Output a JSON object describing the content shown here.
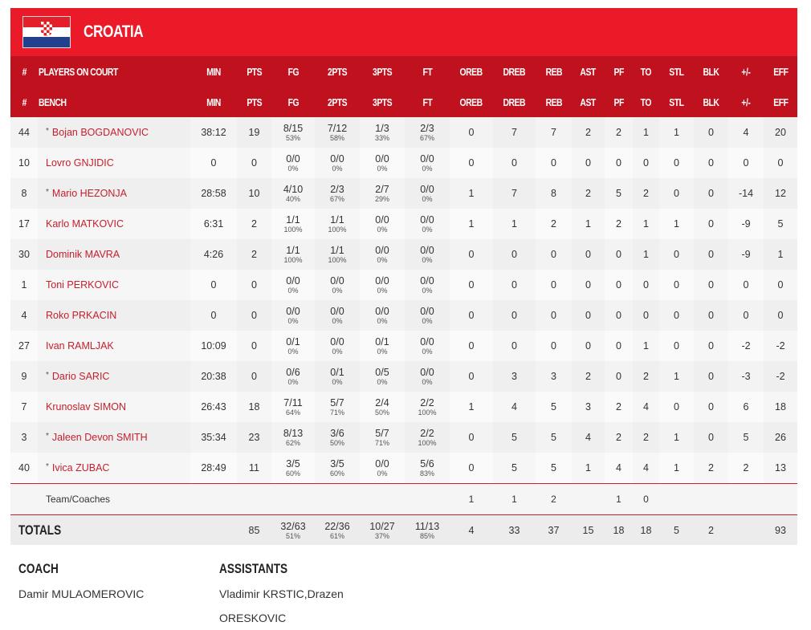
{
  "team": {
    "name": "CROATIA",
    "flag": "croatia-flag",
    "colors": {
      "banner": "#ea1a28",
      "header": "#c0121e"
    }
  },
  "headers_court": [
    "#",
    "PLAYERS ON COURT",
    "MIN",
    "PTS",
    "FG",
    "2PTS",
    "3PTS",
    "FT",
    "OREB",
    "DREB",
    "REB",
    "AST",
    "PF",
    "TO",
    "STL",
    "BLK",
    "+/-",
    "EFF"
  ],
  "headers_bench": [
    "#",
    "BENCH",
    "MIN",
    "PTS",
    "FG",
    "2PTS",
    "3PTS",
    "FT",
    "OREB",
    "DREB",
    "REB",
    "AST",
    "PF",
    "TO",
    "STL",
    "BLK",
    "+/-",
    "EFF"
  ],
  "players": [
    {
      "num": "44",
      "starter": "*",
      "name": "Bojan BOGDANOVIC",
      "min": "38:12",
      "pts": "19",
      "fg": "8/15",
      "fgp": "53%",
      "p2": "7/12",
      "p2p": "58%",
      "p3": "1/3",
      "p3p": "33%",
      "ft": "2/3",
      "ftp": "67%",
      "oreb": "0",
      "dreb": "7",
      "reb": "7",
      "ast": "2",
      "pf": "2",
      "to": "1",
      "stl": "1",
      "blk": "0",
      "pm": "4",
      "eff": "20"
    },
    {
      "num": "10",
      "starter": "",
      "name": "Lovro GNJIDIC",
      "min": "0",
      "pts": "0",
      "fg": "0/0",
      "fgp": "0%",
      "p2": "0/0",
      "p2p": "0%",
      "p3": "0/0",
      "p3p": "0%",
      "ft": "0/0",
      "ftp": "0%",
      "oreb": "0",
      "dreb": "0",
      "reb": "0",
      "ast": "0",
      "pf": "0",
      "to": "0",
      "stl": "0",
      "blk": "0",
      "pm": "0",
      "eff": "0"
    },
    {
      "num": "8",
      "starter": "*",
      "name": "Mario HEZONJA",
      "min": "28:58",
      "pts": "10",
      "fg": "4/10",
      "fgp": "40%",
      "p2": "2/3",
      "p2p": "67%",
      "p3": "2/7",
      "p3p": "29%",
      "ft": "0/0",
      "ftp": "0%",
      "oreb": "1",
      "dreb": "7",
      "reb": "8",
      "ast": "2",
      "pf": "5",
      "to": "2",
      "stl": "0",
      "blk": "0",
      "pm": "-14",
      "eff": "12"
    },
    {
      "num": "17",
      "starter": "",
      "name": "Karlo MATKOVIC",
      "min": "6:31",
      "pts": "2",
      "fg": "1/1",
      "fgp": "100%",
      "p2": "1/1",
      "p2p": "100%",
      "p3": "0/0",
      "p3p": "0%",
      "ft": "0/0",
      "ftp": "0%",
      "oreb": "1",
      "dreb": "1",
      "reb": "2",
      "ast": "1",
      "pf": "2",
      "to": "1",
      "stl": "1",
      "blk": "0",
      "pm": "-9",
      "eff": "5"
    },
    {
      "num": "30",
      "starter": "",
      "name": "Dominik MAVRA",
      "min": "4:26",
      "pts": "2",
      "fg": "1/1",
      "fgp": "100%",
      "p2": "1/1",
      "p2p": "100%",
      "p3": "0/0",
      "p3p": "0%",
      "ft": "0/0",
      "ftp": "0%",
      "oreb": "0",
      "dreb": "0",
      "reb": "0",
      "ast": "0",
      "pf": "0",
      "to": "1",
      "stl": "0",
      "blk": "0",
      "pm": "-9",
      "eff": "1"
    },
    {
      "num": "1",
      "starter": "",
      "name": "Toni PERKOVIC",
      "min": "0",
      "pts": "0",
      "fg": "0/0",
      "fgp": "0%",
      "p2": "0/0",
      "p2p": "0%",
      "p3": "0/0",
      "p3p": "0%",
      "ft": "0/0",
      "ftp": "0%",
      "oreb": "0",
      "dreb": "0",
      "reb": "0",
      "ast": "0",
      "pf": "0",
      "to": "0",
      "stl": "0",
      "blk": "0",
      "pm": "0",
      "eff": "0"
    },
    {
      "num": "4",
      "starter": "",
      "name": "Roko PRKACIN",
      "min": "0",
      "pts": "0",
      "fg": "0/0",
      "fgp": "0%",
      "p2": "0/0",
      "p2p": "0%",
      "p3": "0/0",
      "p3p": "0%",
      "ft": "0/0",
      "ftp": "0%",
      "oreb": "0",
      "dreb": "0",
      "reb": "0",
      "ast": "0",
      "pf": "0",
      "to": "0",
      "stl": "0",
      "blk": "0",
      "pm": "0",
      "eff": "0"
    },
    {
      "num": "27",
      "starter": "",
      "name": "Ivan RAMLJAK",
      "min": "10:09",
      "pts": "0",
      "fg": "0/1",
      "fgp": "0%",
      "p2": "0/0",
      "p2p": "0%",
      "p3": "0/1",
      "p3p": "0%",
      "ft": "0/0",
      "ftp": "0%",
      "oreb": "0",
      "dreb": "0",
      "reb": "0",
      "ast": "0",
      "pf": "0",
      "to": "1",
      "stl": "0",
      "blk": "0",
      "pm": "-2",
      "eff": "-2"
    },
    {
      "num": "9",
      "starter": "*",
      "name": "Dario SARIC",
      "min": "20:38",
      "pts": "0",
      "fg": "0/6",
      "fgp": "0%",
      "p2": "0/1",
      "p2p": "0%",
      "p3": "0/5",
      "p3p": "0%",
      "ft": "0/0",
      "ftp": "0%",
      "oreb": "0",
      "dreb": "3",
      "reb": "3",
      "ast": "2",
      "pf": "0",
      "to": "2",
      "stl": "1",
      "blk": "0",
      "pm": "-3",
      "eff": "-2"
    },
    {
      "num": "7",
      "starter": "",
      "name": "Krunoslav SIMON",
      "min": "26:43",
      "pts": "18",
      "fg": "7/11",
      "fgp": "64%",
      "p2": "5/7",
      "p2p": "71%",
      "p3": "2/4",
      "p3p": "50%",
      "ft": "2/2",
      "ftp": "100%",
      "oreb": "1",
      "dreb": "4",
      "reb": "5",
      "ast": "3",
      "pf": "2",
      "to": "4",
      "stl": "0",
      "blk": "0",
      "pm": "6",
      "eff": "18"
    },
    {
      "num": "3",
      "starter": "*",
      "name": "Jaleen Devon SMITH",
      "min": "35:34",
      "pts": "23",
      "fg": "8/13",
      "fgp": "62%",
      "p2": "3/6",
      "p2p": "50%",
      "p3": "5/7",
      "p3p": "71%",
      "ft": "2/2",
      "ftp": "100%",
      "oreb": "0",
      "dreb": "5",
      "reb": "5",
      "ast": "4",
      "pf": "2",
      "to": "2",
      "stl": "1",
      "blk": "0",
      "pm": "5",
      "eff": "26"
    },
    {
      "num": "40",
      "starter": "*",
      "name": "Ivica ZUBAC",
      "min": "28:49",
      "pts": "11",
      "fg": "3/5",
      "fgp": "60%",
      "p2": "3/5",
      "p2p": "60%",
      "p3": "0/0",
      "p3p": "0%",
      "ft": "5/6",
      "ftp": "83%",
      "oreb": "0",
      "dreb": "5",
      "reb": "5",
      "ast": "1",
      "pf": "4",
      "to": "4",
      "stl": "1",
      "blk": "2",
      "pm": "2",
      "eff": "13"
    }
  ],
  "team_row": {
    "label": "Team/Coaches",
    "oreb": "1",
    "dreb": "1",
    "reb": "2",
    "pf": "1",
    "to": "0"
  },
  "totals": {
    "label": "TOTALS",
    "pts": "85",
    "fg": "32/63",
    "fgp": "51%",
    "p2": "22/36",
    "p2p": "61%",
    "p3": "10/27",
    "p3p": "37%",
    "ft": "11/13",
    "ftp": "85%",
    "oreb": "4",
    "dreb": "33",
    "reb": "37",
    "ast": "15",
    "pf": "18",
    "to": "18",
    "stl": "5",
    "blk": "2",
    "eff": "93"
  },
  "staff": {
    "coach_label": "COACH",
    "coach": "Damir MULAOMEROVIC",
    "assistants_label": "ASSISTANTS",
    "assistants": "Vladimir KRSTIC,Drazen ORESKOVIC"
  }
}
